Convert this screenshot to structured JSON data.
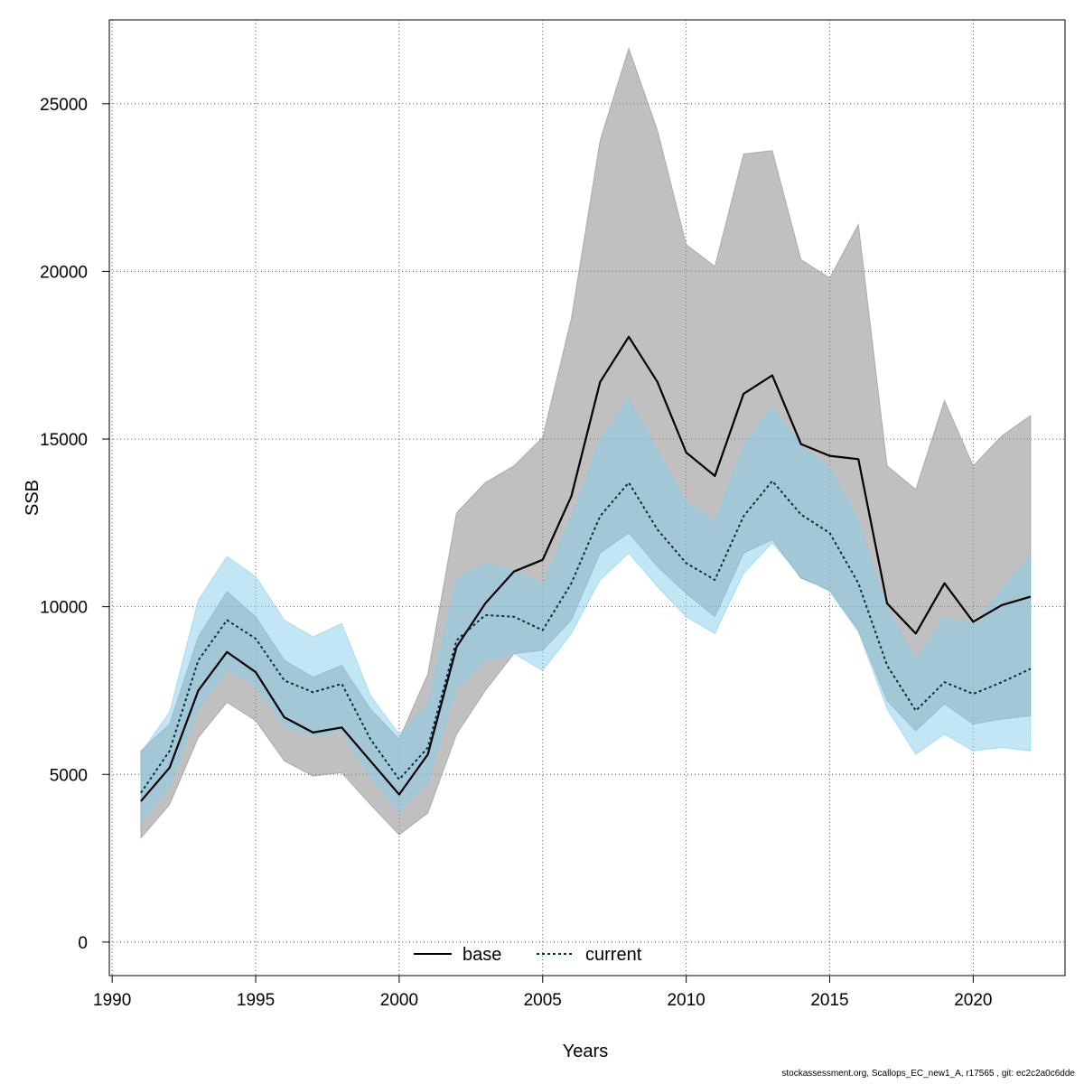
{
  "colors": {
    "base_band": "#8c8c8c",
    "base_line": "#000000",
    "current_band": "#87ceeb",
    "current_line": "#00304f",
    "grid": "#555555"
  },
  "chart_data": {
    "type": "line",
    "xlabel": "Years",
    "ylabel": "SSB",
    "xlim": [
      1989.9,
      2023.2
    ],
    "ylim": [
      -1000,
      27500
    ],
    "x_ticks": [
      1990,
      1995,
      2000,
      2005,
      2010,
      2015,
      2020
    ],
    "y_ticks": [
      0,
      5000,
      10000,
      15000,
      20000,
      25000
    ],
    "grid": true,
    "legend_position": "bottom-center",
    "x": [
      1991,
      1992,
      1993,
      1994,
      1995,
      1996,
      1997,
      1998,
      1999,
      2000,
      2001,
      2002,
      2003,
      2004,
      2005,
      2006,
      2007,
      2008,
      2009,
      2010,
      2011,
      2012,
      2013,
      2014,
      2015,
      2016,
      2017,
      2018,
      2019,
      2020,
      2021,
      2022
    ],
    "series": [
      {
        "name": "base",
        "line_style": "solid",
        "values": [
          4200,
          5200,
          7500,
          8650,
          8050,
          6700,
          6250,
          6400,
          5400,
          4400,
          5600,
          8800,
          10100,
          11050,
          11400,
          13300,
          16700,
          18050,
          16700,
          14600,
          13900,
          16350,
          16900,
          14850,
          14500,
          14400,
          10100,
          9200,
          10700,
          9550,
          10050,
          10300
        ],
        "lower": [
          3100,
          4100,
          6100,
          7150,
          6600,
          5400,
          4950,
          5050,
          4100,
          3200,
          3850,
          6200,
          7500,
          8600,
          8700,
          9600,
          11600,
          12200,
          11200,
          10400,
          9700,
          11600,
          12000,
          10850,
          10500,
          9300,
          7200,
          6300,
          7100,
          6500,
          6650,
          6750
        ],
        "upper": [
          5700,
          6500,
          9100,
          10450,
          9700,
          8400,
          7900,
          8250,
          6950,
          6050,
          8000,
          12800,
          13700,
          14200,
          15050,
          18600,
          23900,
          26650,
          24200,
          20800,
          20150,
          23500,
          23600,
          20350,
          19800,
          21400,
          14200,
          13500,
          16150,
          14200,
          15100,
          15700
        ]
      },
      {
        "name": "current",
        "line_style": "dashed",
        "values": [
          4450,
          5700,
          8400,
          9600,
          9050,
          7800,
          7450,
          7700,
          6050,
          4850,
          5800,
          9000,
          9750,
          9700,
          9300,
          10700,
          12700,
          13700,
          12300,
          11300,
          10800,
          12700,
          13750,
          12750,
          12200,
          10700,
          8250,
          6900,
          7750,
          7400,
          7750,
          8150
        ],
        "lower": [
          3600,
          4650,
          6950,
          8100,
          7650,
          6450,
          6150,
          6300,
          4900,
          3900,
          4750,
          7600,
          8400,
          8600,
          8100,
          9200,
          10800,
          11600,
          10600,
          9700,
          9200,
          11000,
          11900,
          10900,
          10450,
          9250,
          6950,
          5600,
          6200,
          5700,
          5800,
          5700
        ],
        "upper": [
          5650,
          6850,
          10200,
          11500,
          10900,
          9600,
          9100,
          9500,
          7350,
          6200,
          7100,
          10850,
          11300,
          11100,
          10700,
          12700,
          15000,
          16200,
          14650,
          13150,
          12550,
          14800,
          16000,
          14800,
          14150,
          12550,
          9950,
          8450,
          9700,
          9500,
          10500,
          11600
        ]
      }
    ]
  },
  "footer_text": "stockassessment.org, Scallops_EC_new1_A, r17565 , git: ec2c2a0c6dde"
}
